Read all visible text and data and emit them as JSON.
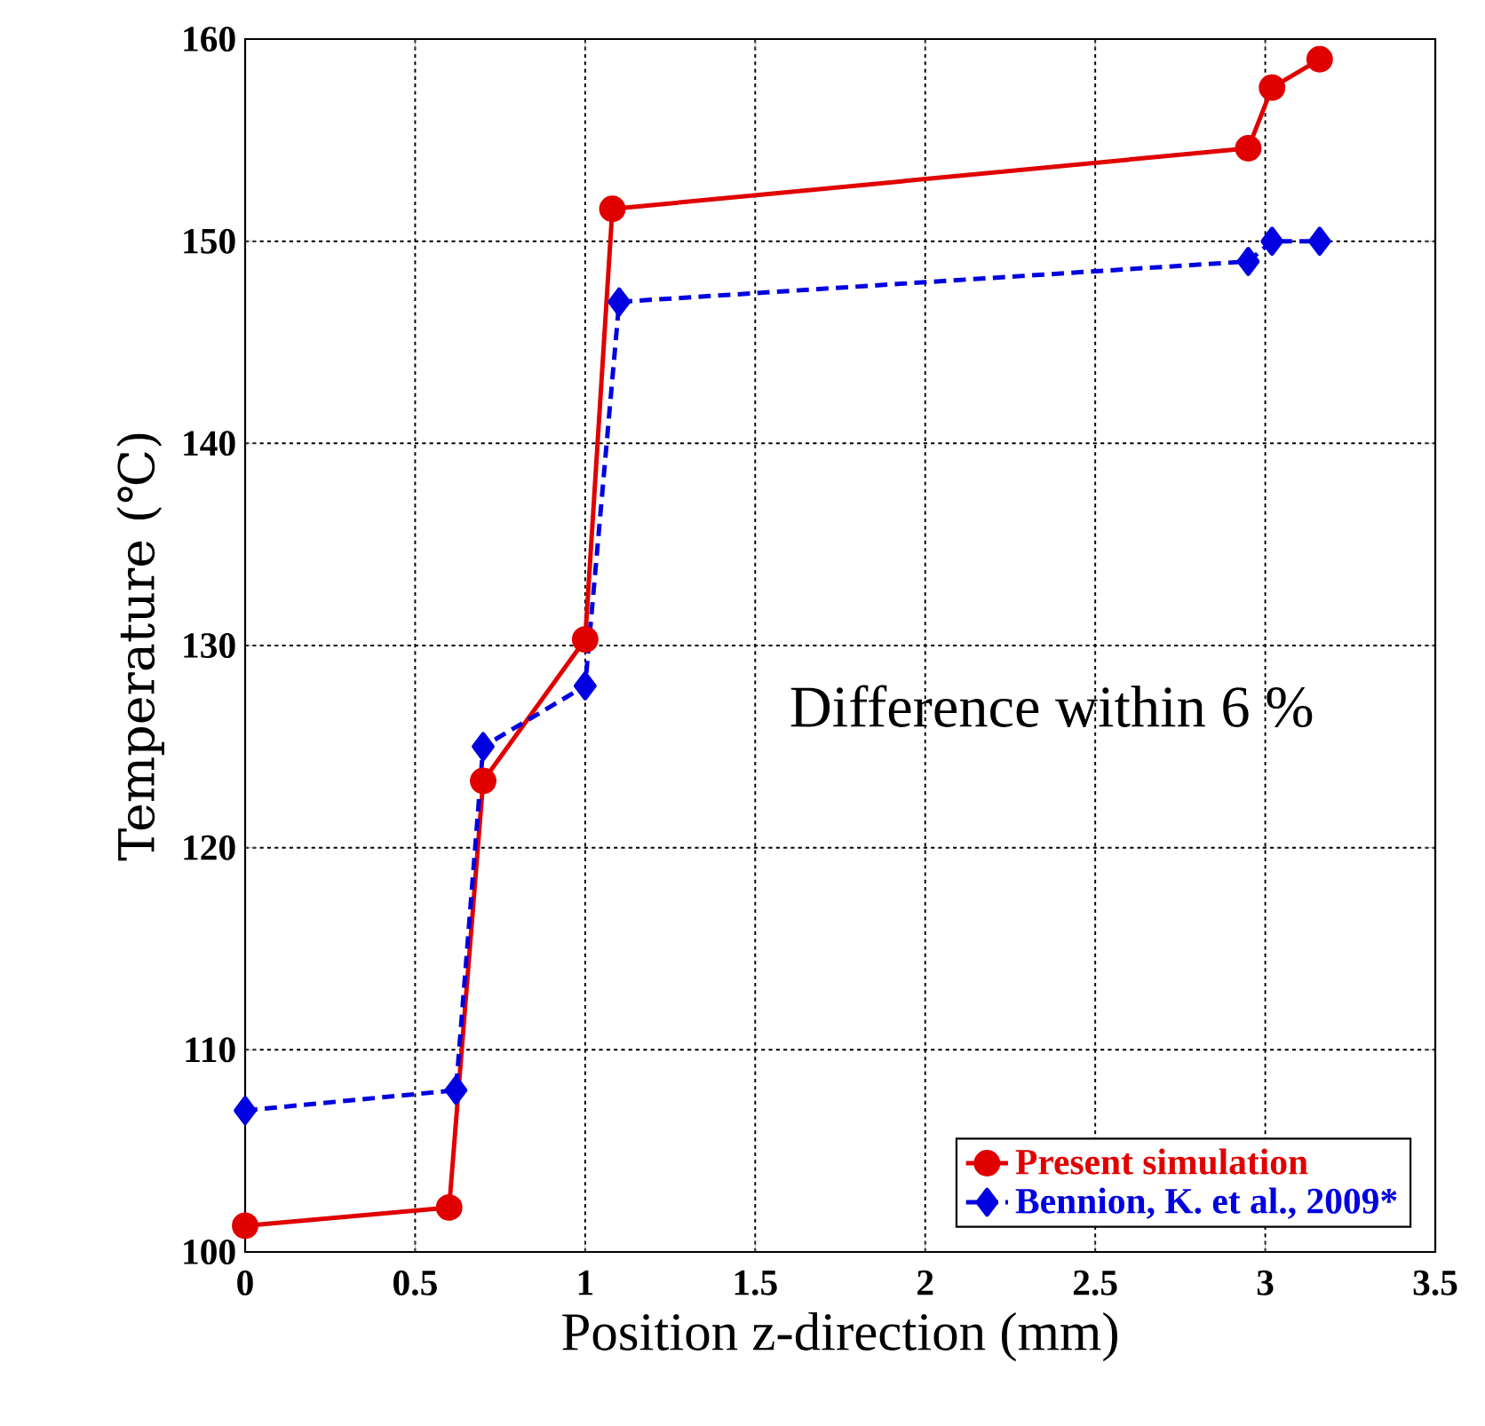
{
  "chart_data": {
    "type": "line",
    "xlabel": "Position z-direction (mm)",
    "ylabel": "Temperature (℃)",
    "annotations": [
      "Difference within 6 %"
    ],
    "xlim": [
      0,
      3.5
    ],
    "xticks": [
      0,
      0.5,
      1,
      1.5,
      2,
      2.5,
      3,
      3.5
    ],
    "ylim": [
      100,
      160
    ],
    "yticks": [
      100,
      110,
      120,
      130,
      140,
      150,
      160
    ],
    "grid": true,
    "legend": "bottom right",
    "series": [
      {
        "name": "Present simulation",
        "color": "#e00000",
        "marker": "circle",
        "line_style": "solid",
        "x": [
          0,
          0.6,
          0.7,
          1.0,
          1.08,
          2.95,
          3.02,
          3.16
        ],
        "values": [
          101.3,
          102.2,
          123.3,
          130.3,
          151.6,
          154.6,
          157.6,
          159
        ]
      },
      {
        "name": "Bennion, K. et al., 2009*",
        "color": "#0000e0",
        "marker": "diamond",
        "line_style": "dashed",
        "x": [
          0,
          0.62,
          0.7,
          1.0,
          1.1,
          2.95,
          3.02,
          3.16
        ],
        "values": [
          107,
          108,
          125,
          128,
          147,
          149,
          150,
          150
        ]
      }
    ]
  }
}
